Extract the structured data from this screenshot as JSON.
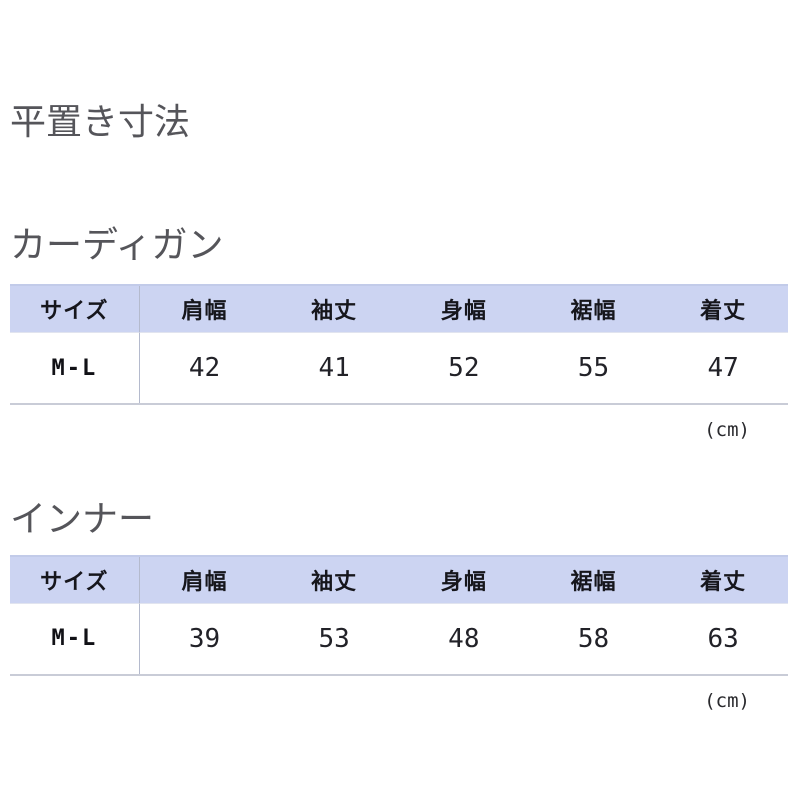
{
  "page": {
    "title": "平置き寸法"
  },
  "tables": [
    {
      "title": "カーディガン",
      "headers": [
        "サイズ",
        "肩幅",
        "袖丈",
        "身幅",
        "裾幅",
        "着丈"
      ],
      "rows": [
        {
          "size": "M-L",
          "values": [
            "42",
            "41",
            "52",
            "55",
            "47"
          ]
        }
      ],
      "unit_note": "(cm)"
    },
    {
      "title": "インナー",
      "headers": [
        "サイズ",
        "肩幅",
        "袖丈",
        "身幅",
        "裾幅",
        "着丈"
      ],
      "rows": [
        {
          "size": "M-L",
          "values": [
            "39",
            "53",
            "48",
            "58",
            "63"
          ]
        }
      ],
      "unit_note": "(cm)"
    }
  ],
  "colors": {
    "table_header_bg": "#ccd4f2",
    "table_border": "#c9ccd7",
    "column_divider": "#b4bacd",
    "title_text": "#55555a",
    "header_text": "#16161c",
    "cell_text": "#222228"
  }
}
